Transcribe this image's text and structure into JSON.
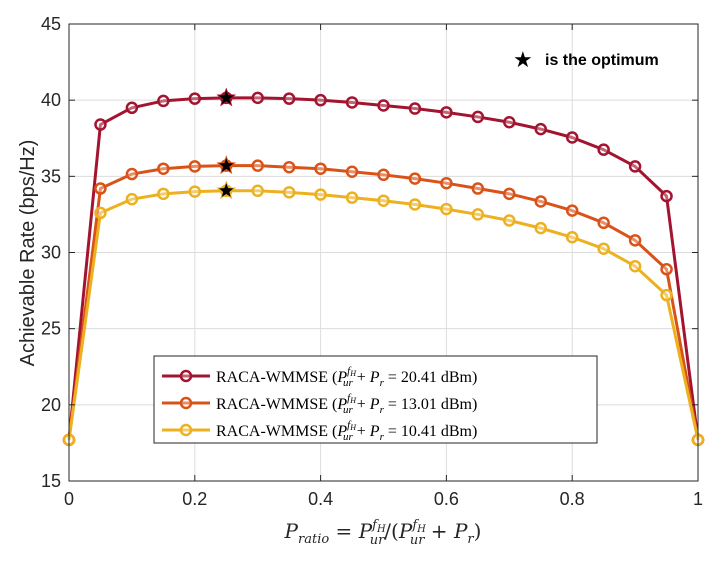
{
  "chart_data": {
    "type": "line",
    "xlabel": "P_ratio = P_ur^{f_H}/(P_ur^{f_H} + P_r)",
    "xlabel_parts": {
      "p": "P",
      "ratio": "ratio",
      "eq": " = ",
      "p2": "P",
      "ur": "ur",
      "fh": "f",
      "fhsub": "H",
      "slash": "/(",
      "p3": "P",
      "plus": " + ",
      "p4": "P",
      "r": "r",
      "close": ")"
    },
    "ylabel": "Achievable Rate (bps/Hz)",
    "xlim": [
      0,
      1
    ],
    "ylim": [
      15,
      45
    ],
    "xticks": [
      0,
      0.2,
      0.4,
      0.6,
      0.8,
      1
    ],
    "xtick_labels": [
      "0",
      "0.2",
      "0.4",
      "0.6",
      "0.8",
      "1"
    ],
    "yticks": [
      15,
      20,
      25,
      30,
      35,
      40,
      45
    ],
    "ytick_labels": [
      "15",
      "20",
      "25",
      "30",
      "35",
      "40",
      "45"
    ],
    "grid": true,
    "annotation": {
      "symbol": "★",
      "text": "is the optimum"
    },
    "x": [
      0,
      0.05,
      0.1,
      0.15,
      0.2,
      0.25,
      0.3,
      0.35,
      0.4,
      0.45,
      0.5,
      0.55,
      0.6,
      0.65,
      0.7,
      0.75,
      0.8,
      0.85,
      0.9,
      0.95,
      1
    ],
    "series": [
      {
        "name": "RACA-WMMSE (P_ur^{f_H} + P_r = 20.41 dBm)",
        "legend_prefix": "RACA-WMMSE (",
        "legend_value": " = 20.41 dBm)",
        "color": "#a2142f",
        "values": [
          17.7,
          38.4,
          39.5,
          39.95,
          40.1,
          40.15,
          40.15,
          40.1,
          40.0,
          39.85,
          39.65,
          39.45,
          39.2,
          38.9,
          38.55,
          38.1,
          37.55,
          36.75,
          35.65,
          33.7,
          17.7
        ],
        "optimum": {
          "x": 0.25,
          "y": 40.15
        }
      },
      {
        "name": "RACA-WMMSE (P_ur^{f_H} + P_r = 13.01 dBm)",
        "legend_prefix": "RACA-WMMSE (",
        "legend_value": " = 13.01 dBm)",
        "color": "#d95319",
        "values": [
          17.7,
          34.2,
          35.15,
          35.5,
          35.65,
          35.7,
          35.7,
          35.6,
          35.5,
          35.3,
          35.1,
          34.85,
          34.55,
          34.2,
          33.85,
          33.35,
          32.75,
          31.95,
          30.8,
          28.9,
          17.7
        ],
        "optimum": {
          "x": 0.25,
          "y": 35.7
        }
      },
      {
        "name": "RACA-WMMSE (P_ur^{f_H} + P_r = 10.41 dBm)",
        "legend_prefix": "RACA-WMMSE (",
        "legend_value": " = 10.41 dBm)",
        "color": "#edb120",
        "values": [
          17.7,
          32.6,
          33.5,
          33.85,
          34.0,
          34.05,
          34.05,
          33.95,
          33.8,
          33.6,
          33.4,
          33.15,
          32.85,
          32.5,
          32.1,
          31.6,
          31.0,
          30.25,
          29.1,
          27.2,
          17.7
        ],
        "optimum": {
          "x": 0.25,
          "y": 34.05
        }
      }
    ],
    "legend_location": "lower-center"
  }
}
